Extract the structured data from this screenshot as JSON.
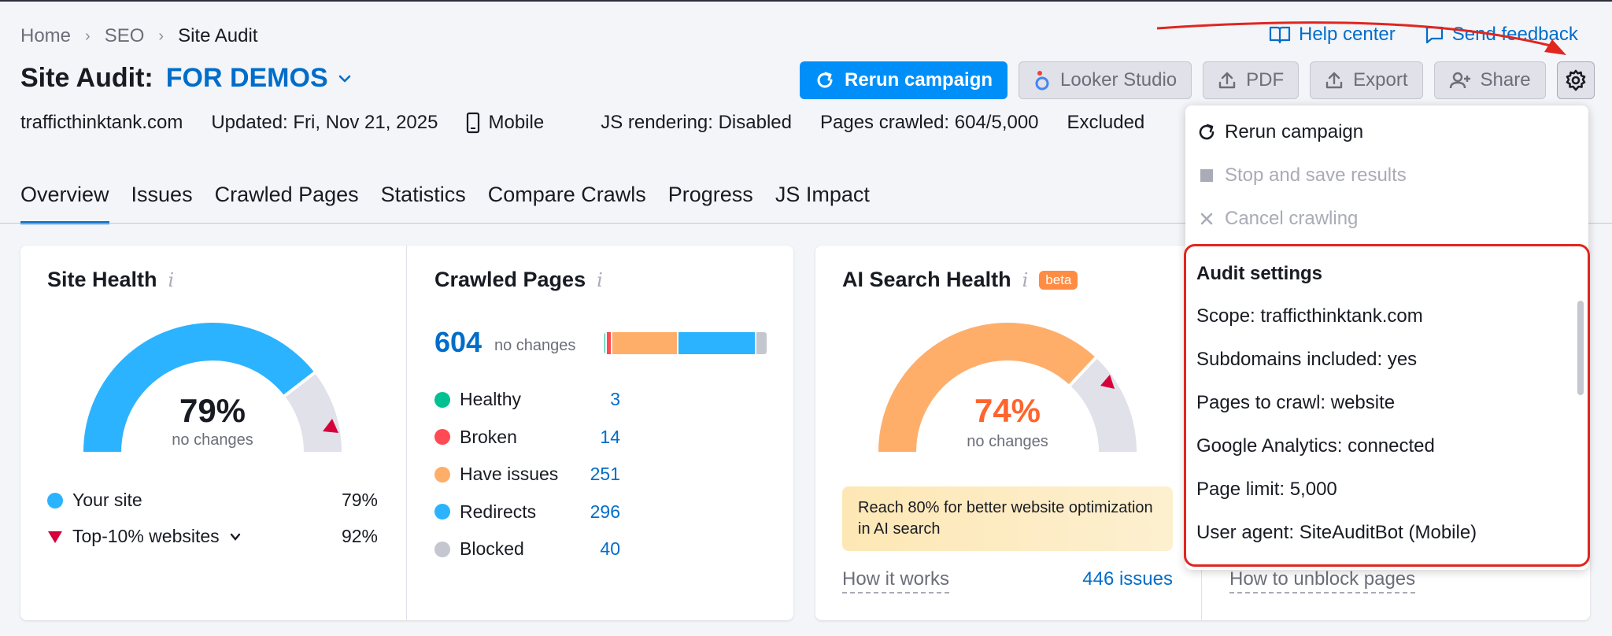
{
  "breadcrumb": {
    "home": "Home",
    "seo": "SEO",
    "current": "Site Audit"
  },
  "title": {
    "label": "Site Audit:",
    "project": "FOR DEMOS"
  },
  "meta": {
    "domain": "trafficthinktank.com",
    "updated": "Updated: Fri, Nov 21, 2025",
    "device": "Mobile",
    "js_rendering": "JS rendering: Disabled",
    "pages_crawled": "Pages crawled: 604/5,000",
    "excluded": "Excluded"
  },
  "help": {
    "help_center": "Help center",
    "send_feedback": "Send feedback"
  },
  "toolbar": {
    "rerun": "Rerun campaign",
    "looker": "Looker Studio",
    "pdf": "PDF",
    "export": "Export",
    "share": "Share"
  },
  "tabs": [
    "Overview",
    "Issues",
    "Crawled Pages",
    "Statistics",
    "Compare Crawls",
    "Progress",
    "JS Impact"
  ],
  "site_health": {
    "title": "Site Health",
    "percent": "79%",
    "percent_value": 79,
    "change": "no changes",
    "legend": [
      {
        "label": "Your site",
        "value": "79%"
      },
      {
        "label": "Top-10% websites",
        "value": "92%"
      }
    ]
  },
  "crawled_pages": {
    "title": "Crawled Pages",
    "total": "604",
    "change": "no changes",
    "rows": [
      {
        "label": "Healthy",
        "value": "3",
        "color": "#00c192"
      },
      {
        "label": "Broken",
        "value": "14",
        "color": "#ff4953"
      },
      {
        "label": "Have issues",
        "value": "251",
        "color": "#ffae6a"
      },
      {
        "label": "Redirects",
        "value": "296",
        "color": "#2bb3ff"
      },
      {
        "label": "Blocked",
        "value": "40",
        "color": "#c4c7cf"
      }
    ]
  },
  "ai_health": {
    "title": "AI Search Health",
    "badge": "beta",
    "percent": "74%",
    "percent_value": 74,
    "change": "no changes",
    "notice": "Reach 80% for better website optimization in AI search",
    "how_it_works": "How it works",
    "issues": "446 issues",
    "unblock": "How to unblock pages"
  },
  "dropdown": {
    "rerun": "Rerun campaign",
    "stop": "Stop and save results",
    "cancel": "Cancel crawling",
    "settings_title": "Audit settings",
    "settings": [
      "Scope: trafficthinktank.com",
      "Subdomains included: yes",
      "Pages to crawl: website",
      "Google Analytics: connected",
      "Page limit: 5,000",
      "User agent: SiteAuditBot (Mobile)"
    ]
  },
  "colors": {
    "accent": "#006dca",
    "primary_button": "#008ff8",
    "site_gauge": "#2bb3ff",
    "ai_gauge": "#ffae6a",
    "ai_percent": "#ff642d",
    "annotation": "#e0261f"
  }
}
